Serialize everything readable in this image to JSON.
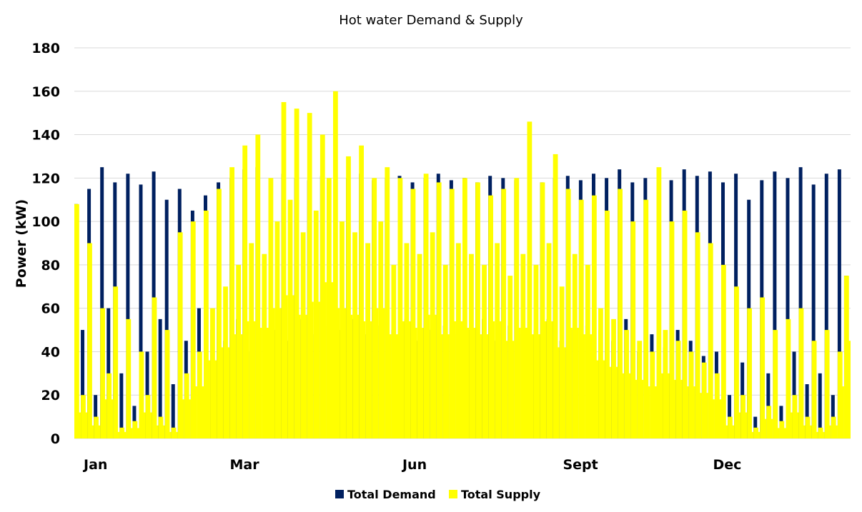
{
  "chart_data": {
    "type": "area",
    "title": "Hot water Demand & Supply",
    "xlabel": "",
    "ylabel": "Power  (kW)",
    "ylim": [
      0,
      180
    ],
    "yticks": [
      0,
      20,
      40,
      60,
      80,
      100,
      120,
      140,
      160,
      180
    ],
    "xlim": [
      0,
      365
    ],
    "x_tick_labels": [
      {
        "label": "Jan",
        "x": 10
      },
      {
        "label": "Mar",
        "x": 80
      },
      {
        "label": "Jun",
        "x": 160
      },
      {
        "label": "Sept",
        "x": 238
      },
      {
        "label": "Dec",
        "x": 307
      }
    ],
    "grid": true,
    "legend_position": "bottom",
    "series": [
      {
        "name": "Total Demand",
        "color": "#002060",
        "values": [
          108,
          50,
          115,
          20,
          125,
          60,
          118,
          30,
          122,
          15,
          117,
          40,
          123,
          55,
          110,
          25,
          115,
          45,
          105,
          60,
          112,
          50,
          118,
          45,
          120,
          55,
          124,
          40,
          125,
          60,
          118,
          50,
          122,
          45,
          120,
          55,
          119,
          48,
          121,
          52,
          118,
          50,
          120,
          55,
          122,
          48,
          119,
          52,
          120,
          50,
          121,
          55,
          118,
          45,
          120,
          50,
          122,
          52,
          119,
          48,
          120,
          50,
          118,
          55,
          121,
          45,
          120,
          52,
          119,
          48,
          122,
          50,
          118,
          55,
          120,
          45,
          121,
          50,
          119,
          52,
          122,
          50,
          120,
          45,
          124,
          55,
          118,
          40,
          120,
          48,
          122,
          42,
          119,
          50,
          124,
          45,
          121,
          38,
          123,
          40,
          118,
          20,
          122,
          35,
          110,
          10,
          119,
          30,
          123,
          15,
          120,
          40,
          125,
          25,
          117,
          30,
          122,
          20,
          124,
          75
        ]
      },
      {
        "name": "Total Supply",
        "color": "#FFFF00",
        "values": [
          108,
          20,
          90,
          10,
          60,
          30,
          70,
          5,
          55,
          8,
          40,
          20,
          65,
          10,
          50,
          5,
          95,
          30,
          100,
          40,
          105,
          60,
          115,
          70,
          125,
          80,
          135,
          90,
          140,
          85,
          120,
          100,
          155,
          110,
          152,
          95,
          150,
          105,
          140,
          120,
          160,
          100,
          130,
          95,
          135,
          90,
          120,
          100,
          125,
          80,
          120,
          90,
          115,
          85,
          122,
          95,
          118,
          80,
          115,
          90,
          120,
          85,
          118,
          80,
          112,
          90,
          115,
          75,
          120,
          85,
          146,
          80,
          118,
          90,
          131,
          70,
          115,
          85,
          110,
          80,
          112,
          60,
          105,
          55,
          115,
          50,
          100,
          45,
          110,
          40,
          125,
          50,
          100,
          45,
          105,
          40,
          95,
          35,
          90,
          30,
          80,
          10,
          70,
          20,
          60,
          5,
          65,
          15,
          50,
          8,
          55,
          20,
          60,
          10,
          45,
          5,
          50,
          10,
          40,
          75
        ]
      }
    ]
  }
}
